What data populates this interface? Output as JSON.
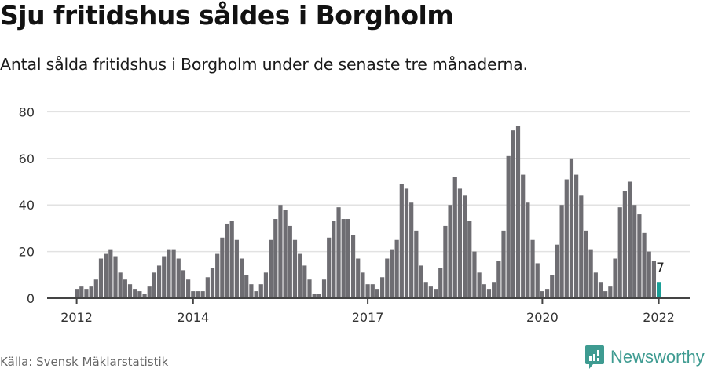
{
  "header": {
    "title": "Sju fritidshus såldes i Borgholm",
    "subtitle": "Antal sålda fritidshus i Borgholm under de senaste tre månaderna."
  },
  "footer": {
    "source": "Källa: Svensk Mäklarstatistik",
    "brand": "Newsworthy",
    "brand_icon": "bar-chart-logo-icon"
  },
  "colors": {
    "bar": "#6e6d72",
    "highlight": "#1a9f97",
    "grid": "#e2e2e2",
    "axis": "#444444",
    "brand": "#3e9b91"
  },
  "chart_data": {
    "type": "bar",
    "title": "Sju fritidshus såldes i Borgholm",
    "subtitle": "Antal sålda fritidshus i Borgholm under de senaste tre månaderna.",
    "xlabel": "",
    "ylabel": "",
    "ylim": [
      0,
      80
    ],
    "yticks": [
      0,
      20,
      40,
      60,
      80
    ],
    "xticks": [
      "2012",
      "2014",
      "2017",
      "2020",
      "2022"
    ],
    "grid": true,
    "legend": null,
    "start": "2012-01",
    "frequency": "monthly",
    "annotation": {
      "label": "7",
      "at": "2022-01"
    },
    "series": [
      {
        "name": "Antal sålda fritidshus (rullande 3 mån)",
        "values": [
          4,
          5,
          4,
          5,
          8,
          17,
          19,
          21,
          18,
          11,
          8,
          6,
          4,
          3,
          2,
          5,
          11,
          14,
          18,
          21,
          21,
          17,
          12,
          8,
          3,
          3,
          3,
          9,
          13,
          19,
          26,
          32,
          33,
          25,
          17,
          10,
          6,
          3,
          6,
          11,
          25,
          34,
          40,
          38,
          31,
          25,
          19,
          14,
          8,
          2,
          2,
          8,
          26,
          33,
          39,
          34,
          34,
          27,
          17,
          11,
          6,
          6,
          4,
          9,
          17,
          21,
          25,
          49,
          47,
          41,
          29,
          14,
          7,
          5,
          4,
          13,
          31,
          40,
          52,
          47,
          44,
          33,
          20,
          11,
          6,
          4,
          7,
          16,
          29,
          61,
          72,
          74,
          53,
          41,
          25,
          15,
          3,
          4,
          10,
          23,
          40,
          51,
          60,
          53,
          44,
          29,
          21,
          11,
          7,
          3,
          5,
          17,
          39,
          46,
          50,
          40,
          36,
          28,
          20,
          16,
          7
        ]
      }
    ]
  }
}
